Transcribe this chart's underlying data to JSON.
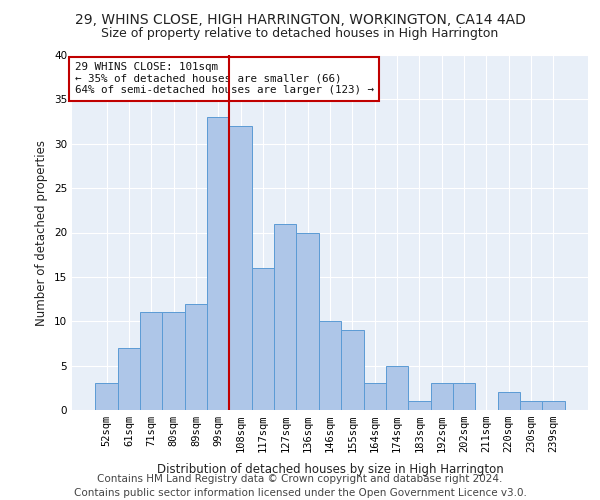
{
  "title": "29, WHINS CLOSE, HIGH HARRINGTON, WORKINGTON, CA14 4AD",
  "subtitle": "Size of property relative to detached houses in High Harrington",
  "xlabel": "Distribution of detached houses by size in High Harrington",
  "ylabel": "Number of detached properties",
  "bar_labels": [
    "52sqm",
    "61sqm",
    "71sqm",
    "80sqm",
    "89sqm",
    "99sqm",
    "108sqm",
    "117sqm",
    "127sqm",
    "136sqm",
    "146sqm",
    "155sqm",
    "164sqm",
    "174sqm",
    "183sqm",
    "192sqm",
    "202sqm",
    "211sqm",
    "220sqm",
    "230sqm",
    "239sqm"
  ],
  "bar_values": [
    3,
    7,
    11,
    11,
    12,
    33,
    32,
    16,
    21,
    20,
    10,
    9,
    3,
    5,
    1,
    3,
    3,
    0,
    2,
    1,
    1
  ],
  "bar_color": "#aec6e8",
  "bar_edge_color": "#5b9bd5",
  "vline_x": 5.5,
  "vline_color": "#c00000",
  "annotation_text": "29 WHINS CLOSE: 101sqm\n← 35% of detached houses are smaller (66)\n64% of semi-detached houses are larger (123) →",
  "annotation_box_color": "#ffffff",
  "annotation_box_edge": "#c00000",
  "ylim": [
    0,
    40
  ],
  "yticks": [
    0,
    5,
    10,
    15,
    20,
    25,
    30,
    35,
    40
  ],
  "footer_line1": "Contains HM Land Registry data © Crown copyright and database right 2024.",
  "footer_line2": "Contains public sector information licensed under the Open Government Licence v3.0.",
  "bg_color": "#e8eff8",
  "fig_bg_color": "#ffffff",
  "title_fontsize": 10,
  "subtitle_fontsize": 9,
  "axis_label_fontsize": 8.5,
  "tick_fontsize": 7.5,
  "footer_fontsize": 7.5
}
